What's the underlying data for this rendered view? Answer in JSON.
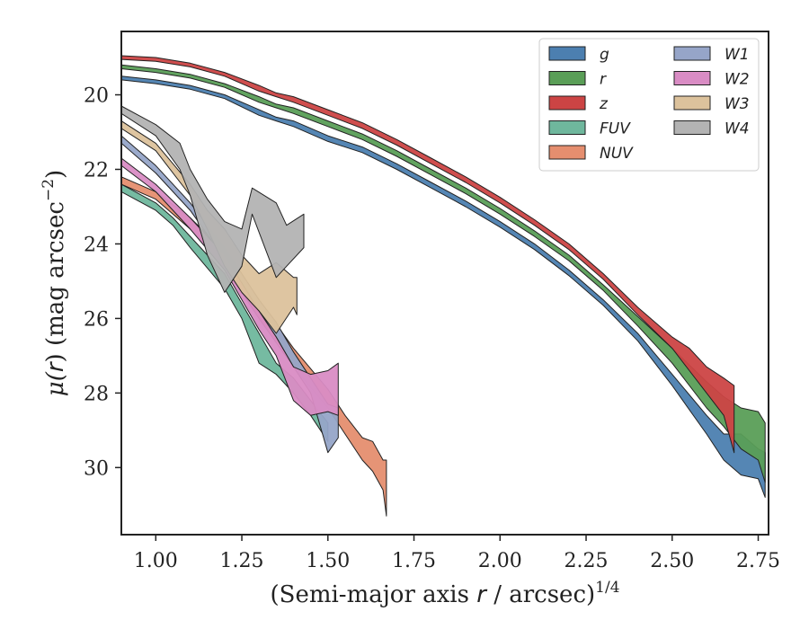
{
  "chart_data": {
    "type": "area",
    "title": "",
    "xlabel": {
      "main": "(Semi-major axis ",
      "var": "r",
      "post": " / arcsec)",
      "sup": "1/4"
    },
    "ylabel": {
      "pre": "μ(",
      "var": "r",
      "post": ") (mag arcsec",
      "sup": "−2",
      "close": ")"
    },
    "xlim": [
      0.9,
      2.78
    ],
    "ylim": [
      31.8,
      18.3
    ],
    "y_inverted": true,
    "grid": false,
    "legend_placement": "top-right",
    "legend_columns": 2,
    "xticks": [
      1.0,
      1.25,
      1.5,
      1.75,
      2.0,
      2.25,
      2.5,
      2.75
    ],
    "xtick_labels": [
      "1.00",
      "1.25",
      "1.50",
      "1.75",
      "2.00",
      "2.25",
      "2.50",
      "2.75"
    ],
    "yticks": [
      20,
      22,
      24,
      26,
      28,
      30
    ],
    "ytick_labels": [
      "20",
      "22",
      "24",
      "26",
      "28",
      "30"
    ],
    "series": [
      {
        "name": "g",
        "color": "#4c7fb0",
        "band": [
          [
            0.9,
            19.5,
            19.6
          ],
          [
            1.0,
            19.6,
            19.7
          ],
          [
            1.1,
            19.75,
            19.85
          ],
          [
            1.2,
            20.0,
            20.1
          ],
          [
            1.3,
            20.4,
            20.55
          ],
          [
            1.35,
            20.6,
            20.7
          ],
          [
            1.4,
            20.7,
            20.85
          ],
          [
            1.5,
            21.1,
            21.25
          ],
          [
            1.6,
            21.4,
            21.55
          ],
          [
            1.7,
            21.85,
            22.0
          ],
          [
            1.8,
            22.35,
            22.5
          ],
          [
            1.9,
            22.85,
            23.0
          ],
          [
            2.0,
            23.4,
            23.55
          ],
          [
            2.1,
            24.0,
            24.15
          ],
          [
            2.2,
            24.7,
            24.85
          ],
          [
            2.3,
            25.5,
            25.65
          ],
          [
            2.4,
            26.4,
            26.6
          ],
          [
            2.5,
            27.5,
            27.8
          ],
          [
            2.6,
            28.6,
            29.1
          ],
          [
            2.65,
            29.1,
            29.8
          ],
          [
            2.7,
            29.1,
            30.2
          ],
          [
            2.75,
            29.5,
            30.3
          ],
          [
            2.77,
            29.6,
            30.8
          ]
        ]
      },
      {
        "name": "r",
        "color": "#5a9e57",
        "band": [
          [
            0.9,
            19.2,
            19.3
          ],
          [
            1.0,
            19.3,
            19.4
          ],
          [
            1.1,
            19.45,
            19.55
          ],
          [
            1.2,
            19.7,
            19.8
          ],
          [
            1.3,
            20.05,
            20.2
          ],
          [
            1.35,
            20.25,
            20.35
          ],
          [
            1.4,
            20.35,
            20.5
          ],
          [
            1.5,
            20.7,
            20.85
          ],
          [
            1.6,
            21.05,
            21.2
          ],
          [
            1.7,
            21.5,
            21.65
          ],
          [
            1.8,
            22.0,
            22.15
          ],
          [
            1.9,
            22.5,
            22.65
          ],
          [
            2.0,
            23.05,
            23.2
          ],
          [
            2.1,
            23.65,
            23.8
          ],
          [
            2.2,
            24.3,
            24.45
          ],
          [
            2.3,
            25.1,
            25.25
          ],
          [
            2.4,
            25.95,
            26.2
          ],
          [
            2.5,
            26.8,
            27.2
          ],
          [
            2.6,
            27.7,
            28.4
          ],
          [
            2.65,
            28.1,
            28.9
          ],
          [
            2.7,
            28.4,
            29.5
          ],
          [
            2.75,
            28.5,
            29.8
          ],
          [
            2.77,
            28.8,
            30.4
          ]
        ]
      },
      {
        "name": "z",
        "color": "#cc4444",
        "band": [
          [
            0.9,
            18.95,
            19.05
          ],
          [
            1.0,
            19.0,
            19.1
          ],
          [
            1.1,
            19.15,
            19.25
          ],
          [
            1.2,
            19.4,
            19.5
          ],
          [
            1.3,
            19.75,
            19.9
          ],
          [
            1.35,
            19.95,
            20.05
          ],
          [
            1.4,
            20.05,
            20.2
          ],
          [
            1.5,
            20.4,
            20.55
          ],
          [
            1.6,
            20.75,
            20.9
          ],
          [
            1.7,
            21.2,
            21.35
          ],
          [
            1.8,
            21.7,
            21.85
          ],
          [
            1.9,
            22.2,
            22.35
          ],
          [
            2.0,
            22.75,
            22.9
          ],
          [
            2.1,
            23.35,
            23.5
          ],
          [
            2.2,
            24.0,
            24.15
          ],
          [
            2.3,
            24.8,
            24.95
          ],
          [
            2.4,
            25.7,
            25.9
          ],
          [
            2.5,
            26.5,
            26.8
          ],
          [
            2.55,
            26.8,
            27.4
          ],
          [
            2.6,
            27.3,
            28.0
          ],
          [
            2.65,
            27.6,
            28.6
          ],
          [
            2.68,
            27.8,
            29.6
          ]
        ]
      },
      {
        "name": "FUV",
        "color": "#6fb79d",
        "band": [
          [
            0.9,
            22.4,
            22.6
          ],
          [
            1.0,
            22.9,
            23.1
          ],
          [
            1.05,
            23.3,
            23.5
          ],
          [
            1.1,
            23.8,
            24.1
          ],
          [
            1.2,
            24.8,
            25.2
          ],
          [
            1.25,
            25.6,
            26.0
          ],
          [
            1.3,
            26.4,
            27.2
          ],
          [
            1.35,
            27.2,
            27.5
          ],
          [
            1.4,
            27.6,
            28.0
          ],
          [
            1.45,
            28.2,
            28.6
          ],
          [
            1.5,
            28.8,
            29.3
          ]
        ]
      },
      {
        "name": "NUV",
        "color": "#e58e6f",
        "band": [
          [
            0.9,
            22.2,
            22.4
          ],
          [
            1.0,
            22.6,
            22.8
          ],
          [
            1.1,
            23.3,
            23.6
          ],
          [
            1.2,
            24.2,
            24.6
          ],
          [
            1.3,
            25.5,
            26.0
          ],
          [
            1.4,
            26.8,
            27.3
          ],
          [
            1.5,
            27.9,
            28.4
          ],
          [
            1.55,
            28.6,
            29.1
          ],
          [
            1.6,
            29.2,
            29.8
          ],
          [
            1.63,
            29.3,
            30.1
          ],
          [
            1.66,
            29.8,
            30.6
          ],
          [
            1.67,
            29.8,
            31.3
          ]
        ]
      },
      {
        "name": "W1",
        "color": "#96a5c8",
        "band": [
          [
            0.9,
            21.1,
            21.3
          ],
          [
            1.0,
            21.9,
            22.1
          ],
          [
            1.1,
            22.9,
            23.1
          ],
          [
            1.2,
            24.1,
            24.4
          ],
          [
            1.3,
            25.5,
            25.8
          ],
          [
            1.35,
            26.1,
            26.5
          ],
          [
            1.4,
            26.9,
            27.3
          ],
          [
            1.45,
            27.6,
            28.0
          ],
          [
            1.5,
            28.3,
            29.6
          ],
          [
            1.53,
            28.4,
            29.2
          ]
        ]
      },
      {
        "name": "W2",
        "color": "#d98cc4",
        "band": [
          [
            0.9,
            21.7,
            21.9
          ],
          [
            1.0,
            22.4,
            22.6
          ],
          [
            1.1,
            23.3,
            23.6
          ],
          [
            1.2,
            24.3,
            24.7
          ],
          [
            1.3,
            25.8,
            26.3
          ],
          [
            1.35,
            26.5,
            27.0
          ],
          [
            1.4,
            27.3,
            28.2
          ],
          [
            1.45,
            27.5,
            28.6
          ],
          [
            1.5,
            27.4,
            28.5
          ],
          [
            1.53,
            27.2,
            28.6
          ]
        ]
      },
      {
        "name": "W3",
        "color": "#dcc29c",
        "band": [
          [
            0.9,
            20.7,
            20.9
          ],
          [
            1.0,
            21.3,
            21.5
          ],
          [
            1.1,
            22.4,
            22.7
          ],
          [
            1.15,
            23.1,
            23.6
          ],
          [
            1.2,
            23.6,
            24.6
          ],
          [
            1.25,
            24.3,
            25.3
          ],
          [
            1.3,
            24.8,
            25.8
          ],
          [
            1.35,
            24.5,
            26.4
          ],
          [
            1.4,
            24.9,
            25.7
          ],
          [
            1.41,
            24.9,
            25.9
          ]
        ]
      },
      {
        "name": "W4",
        "color": "#b3b3b3",
        "band": [
          [
            0.9,
            20.3,
            20.5
          ],
          [
            1.0,
            20.8,
            21.1
          ],
          [
            1.07,
            21.3,
            22.0
          ],
          [
            1.1,
            22.0,
            22.7
          ],
          [
            1.15,
            22.8,
            24.3
          ],
          [
            1.2,
            23.4,
            25.3
          ],
          [
            1.25,
            23.6,
            24.6
          ],
          [
            1.28,
            22.5,
            23.2
          ],
          [
            1.35,
            22.9,
            24.9
          ],
          [
            1.38,
            23.5,
            24.6
          ],
          [
            1.43,
            23.2,
            24.1
          ]
        ]
      }
    ]
  }
}
